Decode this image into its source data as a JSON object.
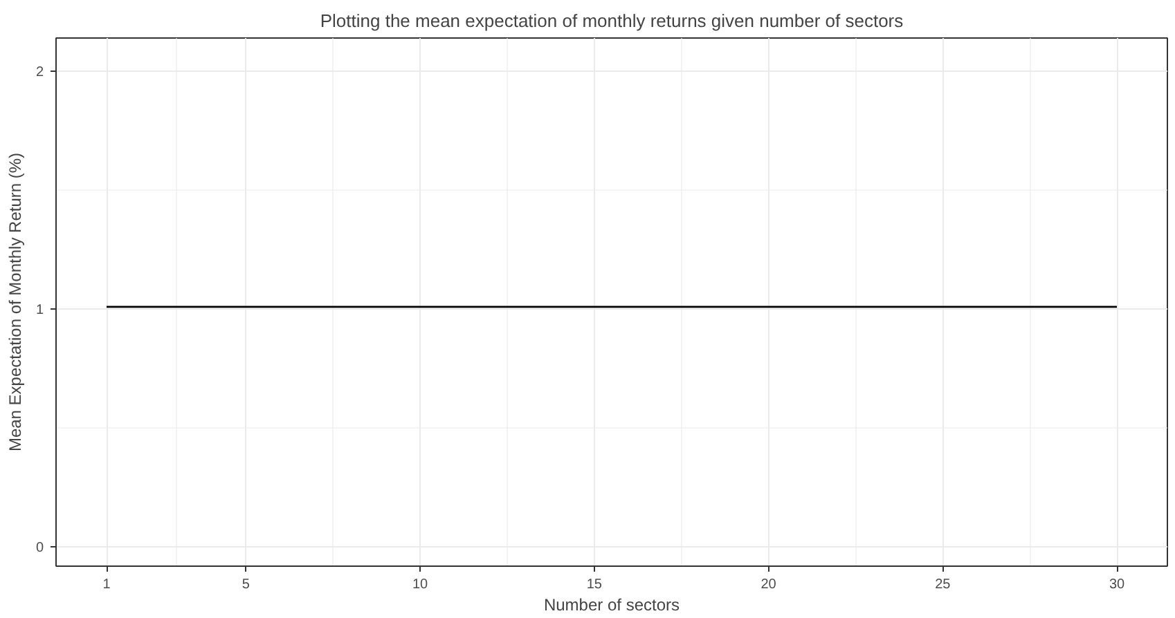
{
  "chart_data": {
    "type": "line",
    "title": "Plotting the mean expectation of monthly returns given number of sectors",
    "xlabel": "Number of sectors",
    "ylabel": "Mean Expectation of Monthly Return (%)",
    "x": [
      1,
      30
    ],
    "series": [
      {
        "color": "#000000",
        "values": [
          1.01,
          1.01
        ]
      }
    ],
    "xlim": [
      -0.45,
      31.45
    ],
    "ylim": [
      -0.08,
      2.14
    ],
    "xticks": [
      1,
      5,
      10,
      15,
      20,
      25,
      30
    ],
    "yticks": [
      0,
      1,
      2
    ],
    "grid": true,
    "marker": "none",
    "line_style": "solid"
  }
}
